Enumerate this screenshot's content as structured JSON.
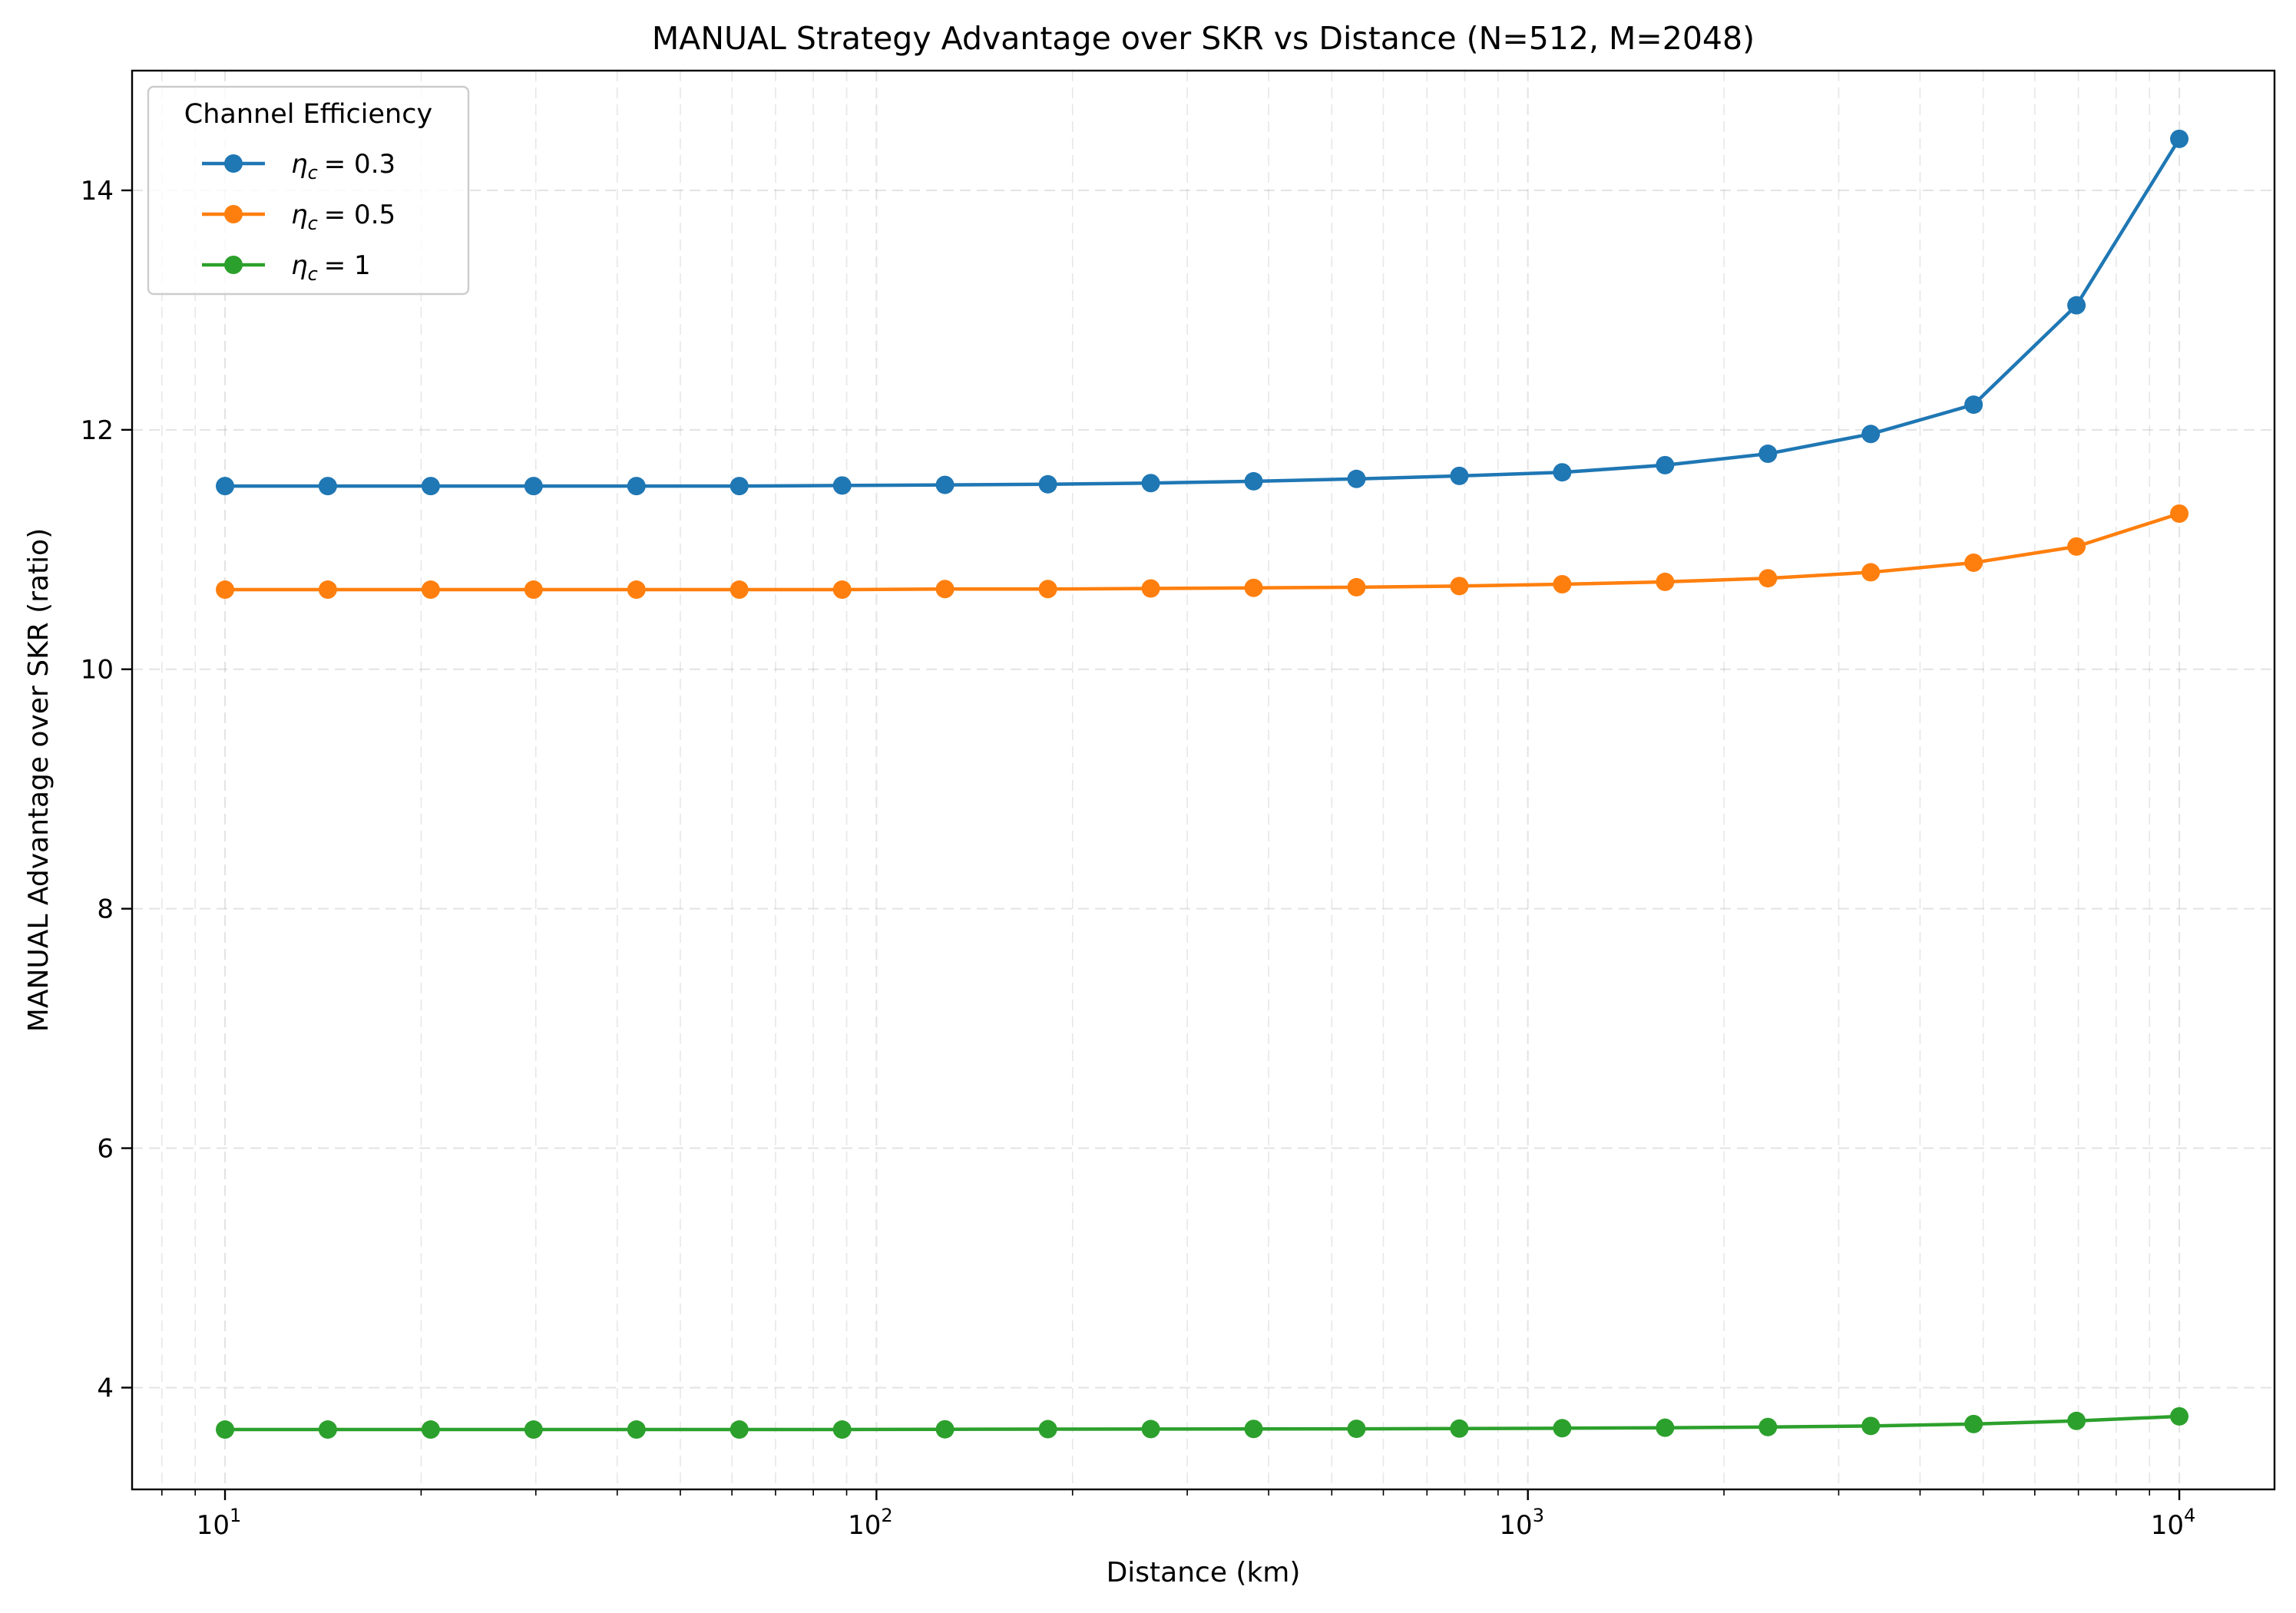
{
  "chart_data": {
    "type": "line",
    "title": "MANUAL Strategy Advantage over SKR vs Distance (N=512, M=2048)",
    "xlabel": "Distance (km)",
    "ylabel": "MANUAL Advantage over SKR (ratio)",
    "xscale": "log",
    "xlim": [
      7.2,
      14000
    ],
    "ylim": [
      3.15,
      15.0
    ],
    "xticks": [
      {
        "value": 10,
        "base": "10",
        "exp": "1"
      },
      {
        "value": 100,
        "base": "10",
        "exp": "2"
      },
      {
        "value": 1000,
        "base": "10",
        "exp": "3"
      },
      {
        "value": 10000,
        "base": "10",
        "exp": "4"
      }
    ],
    "yticks": [
      {
        "value": 4,
        "label": "4"
      },
      {
        "value": 6,
        "label": "6"
      },
      {
        "value": 8,
        "label": "8"
      },
      {
        "value": 10,
        "label": "10"
      },
      {
        "value": 12,
        "label": "12"
      },
      {
        "value": 14,
        "label": "14"
      }
    ],
    "grid": true,
    "legend": {
      "title": "Channel Efficiency",
      "placement": "top-left"
    },
    "x": [
      10,
      14.38,
      20.69,
      29.76,
      42.81,
      61.58,
      88.59,
      127.4,
      183.3,
      263.7,
      379.3,
      545.6,
      784.8,
      1129,
      1624,
      2336,
      3360,
      4833,
      6952,
      10000
    ],
    "series": [
      {
        "name": "η_c = 0.3",
        "label_var": "η",
        "label_sub": "c",
        "label_value": "= 0.3",
        "color": "#1f77b4",
        "values": [
          11.53,
          11.53,
          11.53,
          11.53,
          11.53,
          11.53,
          11.535,
          11.54,
          11.545,
          11.555,
          11.57,
          11.59,
          11.615,
          11.645,
          11.705,
          11.8,
          11.965,
          12.21,
          13.04,
          14.43
        ]
      },
      {
        "name": "η_c = 0.5",
        "label_var": "η",
        "label_sub": "c",
        "label_value": "= 0.5",
        "color": "#ff7f0e",
        "values": [
          10.665,
          10.665,
          10.665,
          10.665,
          10.665,
          10.665,
          10.665,
          10.67,
          10.67,
          10.675,
          10.68,
          10.685,
          10.695,
          10.71,
          10.73,
          10.76,
          10.81,
          10.89,
          11.025,
          11.3
        ]
      },
      {
        "name": "η_c = 1",
        "label_var": "η",
        "label_sub": "c",
        "label_value": "= 1",
        "color": "#2ca02c",
        "values": [
          3.65,
          3.65,
          3.65,
          3.65,
          3.65,
          3.65,
          3.65,
          3.652,
          3.653,
          3.654,
          3.655,
          3.656,
          3.658,
          3.661,
          3.665,
          3.671,
          3.68,
          3.696,
          3.722,
          3.76
        ]
      }
    ]
  }
}
